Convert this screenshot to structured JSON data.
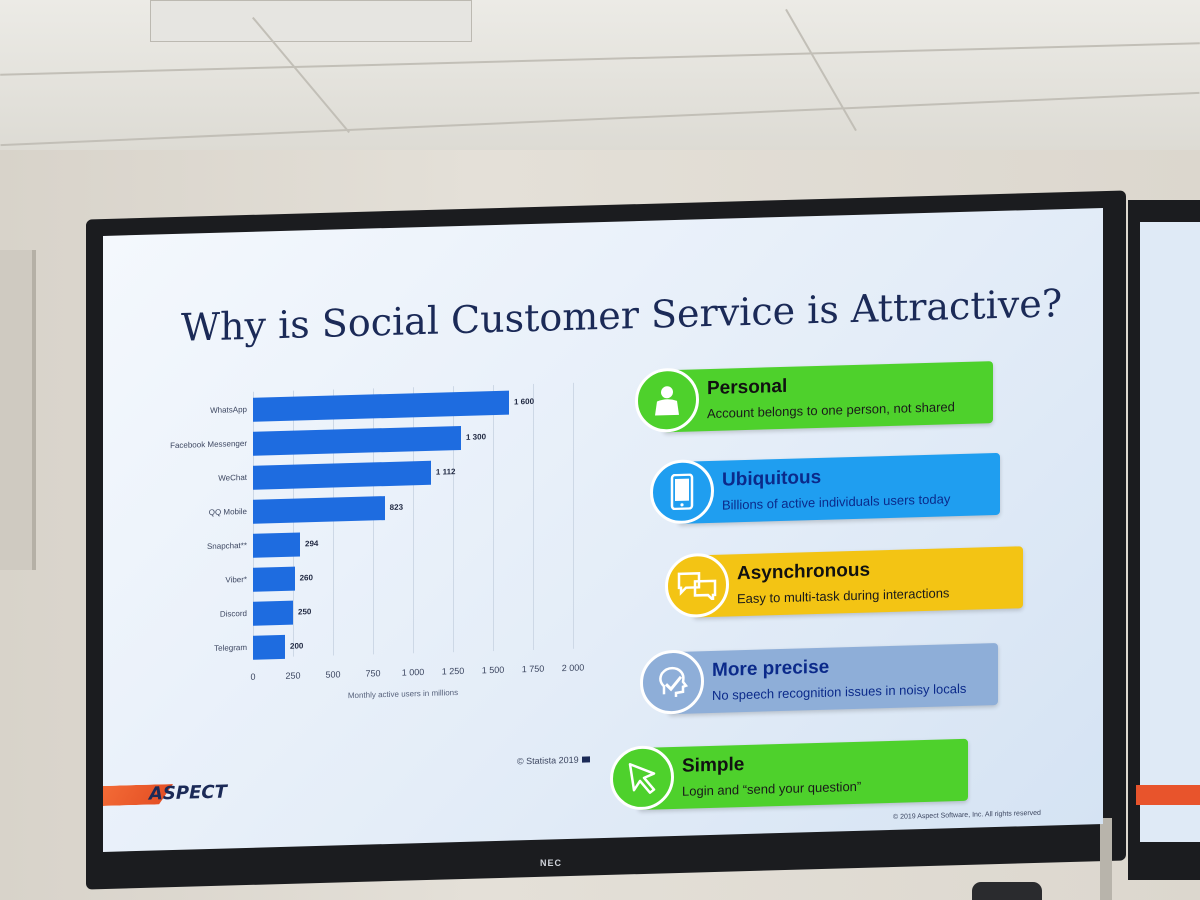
{
  "slide": {
    "title": "Why is Social Customer Service is Attractive?",
    "source": "© Statista 2019",
    "logo": "ASPECT",
    "copyright": "© 2019 Aspect Software, Inc. All rights reserved",
    "monitor_brand": "NEC"
  },
  "chart_data": {
    "type": "bar",
    "orientation": "horizontal",
    "categories": [
      "WhatsApp",
      "Facebook Messenger",
      "WeChat",
      "QQ Mobile",
      "Snapchat**",
      "Viber*",
      "Discord",
      "Telegram"
    ],
    "values": [
      1600,
      1300,
      1112,
      823,
      294,
      260,
      250,
      200
    ],
    "value_labels": [
      "1 600",
      "1 300",
      "1 112",
      "823",
      "294",
      "260",
      "250",
      "200"
    ],
    "xlabel": "Monthly active users in millions",
    "xlim": [
      0,
      2000
    ],
    "xticks": [
      0,
      250,
      500,
      750,
      1000,
      1250,
      1500,
      1750,
      2000
    ],
    "xtick_labels": [
      "0",
      "250",
      "500",
      "750",
      "1 000",
      "1 250",
      "1 500",
      "1 750",
      "2 000"
    ],
    "bar_color": "#1e6ce0",
    "grid": true
  },
  "cards": [
    {
      "title": "Personal",
      "desc": "Account belongs to one person, not shared",
      "color": "#4ed12c",
      "icon": "person-icon"
    },
    {
      "title": "Ubiquitous",
      "desc": "Billions of active individuals users today",
      "color": "#1f9ef0",
      "icon": "smartphone-icon"
    },
    {
      "title": "Asynchronous",
      "desc": "Easy to multi-task during interactions",
      "color": "#f3c414",
      "icon": "chat-bubbles-icon"
    },
    {
      "title": "More precise",
      "desc": "No speech recognition issues in noisy locals",
      "color": "#8eaed8",
      "icon": "head-check-icon"
    },
    {
      "title": "Simple",
      "desc": "Login and “send your question”",
      "color": "#4ed12c",
      "icon": "cursor-arrow-icon"
    }
  ]
}
